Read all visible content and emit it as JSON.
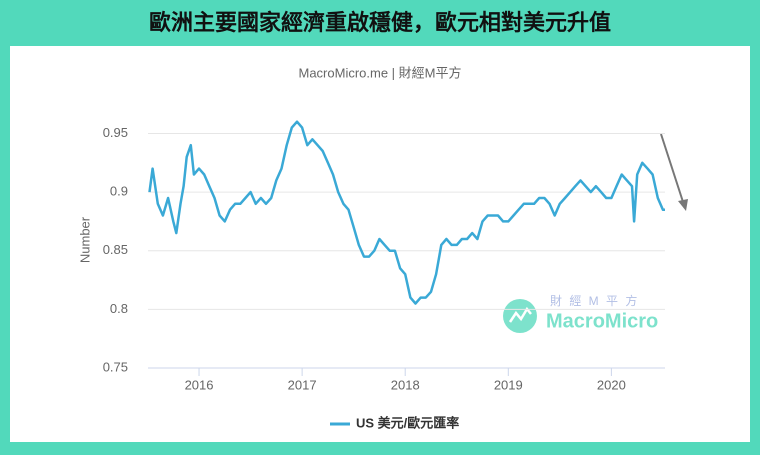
{
  "chart_data": {
    "type": "line",
    "title": "歐洲主要國家經濟重啟穩健，歐元相對美元升值",
    "subtitle": "MacroMicro.me | 財經M平方",
    "y_label": "Number",
    "watermark": {
      "top": "財 經 M 平 方",
      "bottom": "MacroMicro"
    },
    "x": [
      2015.52,
      2015.55,
      2015.6,
      2015.65,
      2015.7,
      2015.75,
      2015.78,
      2015.82,
      2015.85,
      2015.88,
      2015.92,
      2015.95,
      2016.0,
      2016.05,
      2016.1,
      2016.15,
      2016.2,
      2016.25,
      2016.3,
      2016.35,
      2016.4,
      2016.45,
      2016.5,
      2016.55,
      2016.6,
      2016.65,
      2016.7,
      2016.75,
      2016.8,
      2016.85,
      2016.9,
      2016.95,
      2017.0,
      2017.05,
      2017.1,
      2017.15,
      2017.2,
      2017.25,
      2017.3,
      2017.35,
      2017.4,
      2017.45,
      2017.5,
      2017.55,
      2017.6,
      2017.65,
      2017.7,
      2017.75,
      2017.8,
      2017.85,
      2017.9,
      2017.95,
      2018.0,
      2018.05,
      2018.1,
      2018.15,
      2018.2,
      2018.25,
      2018.3,
      2018.35,
      2018.4,
      2018.45,
      2018.5,
      2018.55,
      2018.6,
      2018.65,
      2018.7,
      2018.75,
      2018.8,
      2018.85,
      2018.9,
      2018.95,
      2019.0,
      2019.05,
      2019.1,
      2019.15,
      2019.2,
      2019.25,
      2019.3,
      2019.35,
      2019.4,
      2019.45,
      2019.5,
      2019.55,
      2019.6,
      2019.65,
      2019.7,
      2019.75,
      2019.8,
      2019.85,
      2019.9,
      2019.95,
      2020.0,
      2020.05,
      2020.1,
      2020.15,
      2020.2,
      2020.22,
      2020.25,
      2020.3,
      2020.35,
      2020.4,
      2020.45,
      2020.5,
      2020.52
    ],
    "series": [
      {
        "name": "US 美元/歐元匯率",
        "color": "#3aa9d6",
        "values": [
          0.9,
          0.92,
          0.89,
          0.88,
          0.895,
          0.875,
          0.865,
          0.89,
          0.905,
          0.93,
          0.94,
          0.915,
          0.92,
          0.915,
          0.905,
          0.895,
          0.88,
          0.875,
          0.885,
          0.89,
          0.89,
          0.895,
          0.9,
          0.89,
          0.895,
          0.89,
          0.895,
          0.91,
          0.92,
          0.94,
          0.955,
          0.96,
          0.955,
          0.94,
          0.945,
          0.94,
          0.935,
          0.925,
          0.915,
          0.9,
          0.89,
          0.885,
          0.87,
          0.855,
          0.845,
          0.845,
          0.85,
          0.86,
          0.855,
          0.85,
          0.85,
          0.835,
          0.83,
          0.81,
          0.805,
          0.81,
          0.81,
          0.815,
          0.83,
          0.855,
          0.86,
          0.855,
          0.855,
          0.86,
          0.86,
          0.865,
          0.86,
          0.875,
          0.88,
          0.88,
          0.88,
          0.875,
          0.875,
          0.88,
          0.885,
          0.89,
          0.89,
          0.89,
          0.895,
          0.895,
          0.89,
          0.88,
          0.89,
          0.895,
          0.9,
          0.905,
          0.91,
          0.905,
          0.9,
          0.905,
          0.9,
          0.895,
          0.895,
          0.905,
          0.915,
          0.91,
          0.905,
          0.875,
          0.915,
          0.925,
          0.92,
          0.915,
          0.895,
          0.885,
          0.885
        ]
      }
    ],
    "xlim": [
      2015.505,
      2020.52
    ],
    "xticks": [
      2016,
      2017,
      2018,
      2019,
      2020
    ],
    "ylim": [
      0.75,
      0.97
    ],
    "yticks": [
      0.75,
      0.8,
      0.85,
      0.9,
      0.95
    ],
    "grid": true
  }
}
